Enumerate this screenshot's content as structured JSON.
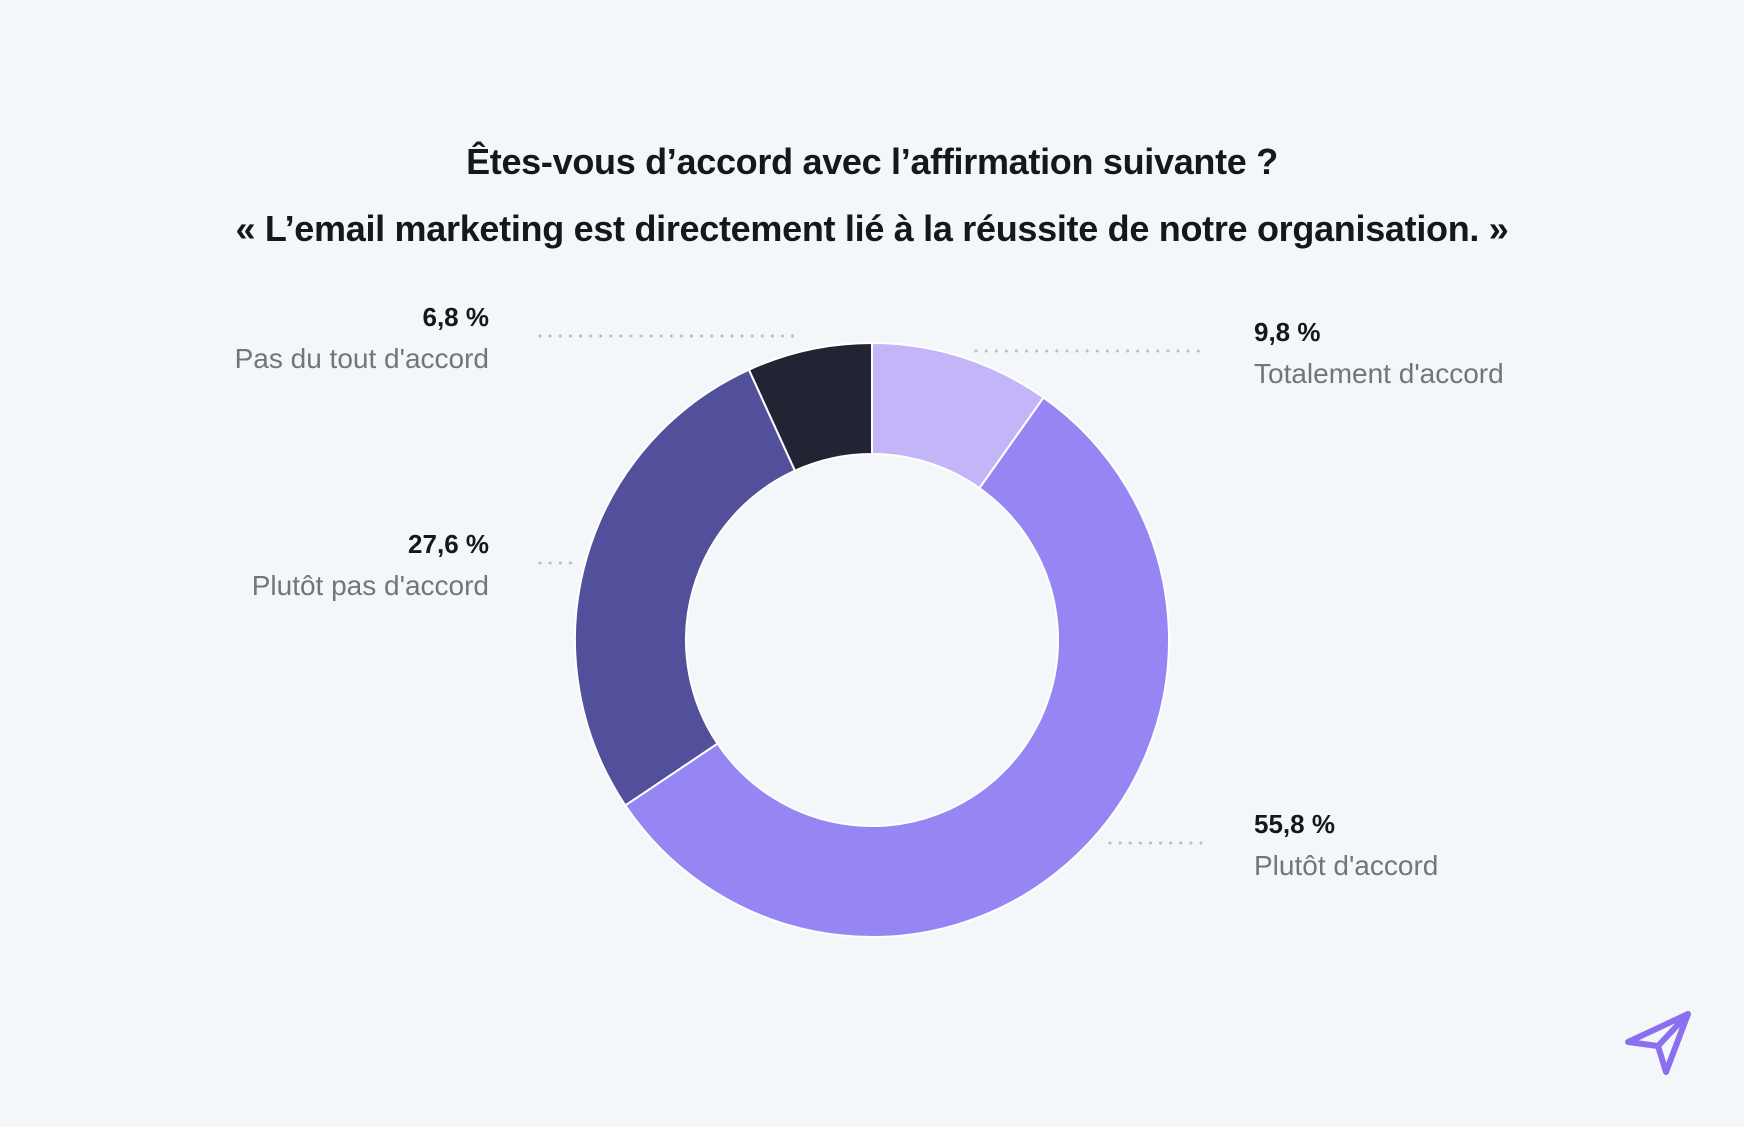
{
  "title": {
    "line1": "Êtes-vous d’accord avec l’affirmation suivante ?",
    "line2": "« L’email marketing est directement lié à la réussite de notre organisation. »"
  },
  "chart_data": {
    "type": "pie",
    "variant": "donut",
    "slices": [
      {
        "label": "Totalement d'accord",
        "value": 9.8,
        "display": "9,8 %",
        "color": "#c3b5f7",
        "side": "right"
      },
      {
        "label": "Plutôt d'accord",
        "value": 55.8,
        "display": "55,8 %",
        "color": "#9686f3",
        "side": "right"
      },
      {
        "label": "Plutôt pas d'accord",
        "value": 27.6,
        "display": "27,6 %",
        "color": "#524f9b",
        "side": "left"
      },
      {
        "label": "Pas du tout d'accord",
        "value": 6.8,
        "display": "6,8 %",
        "color": "#222433",
        "side": "left"
      }
    ],
    "start": "top",
    "direction": "clockwise",
    "slice_separator_color": "#ffffff",
    "leader_color": "#b9bec4"
  },
  "logo": {
    "icon": "paper-plane-icon",
    "color": "#8b6ff0"
  }
}
